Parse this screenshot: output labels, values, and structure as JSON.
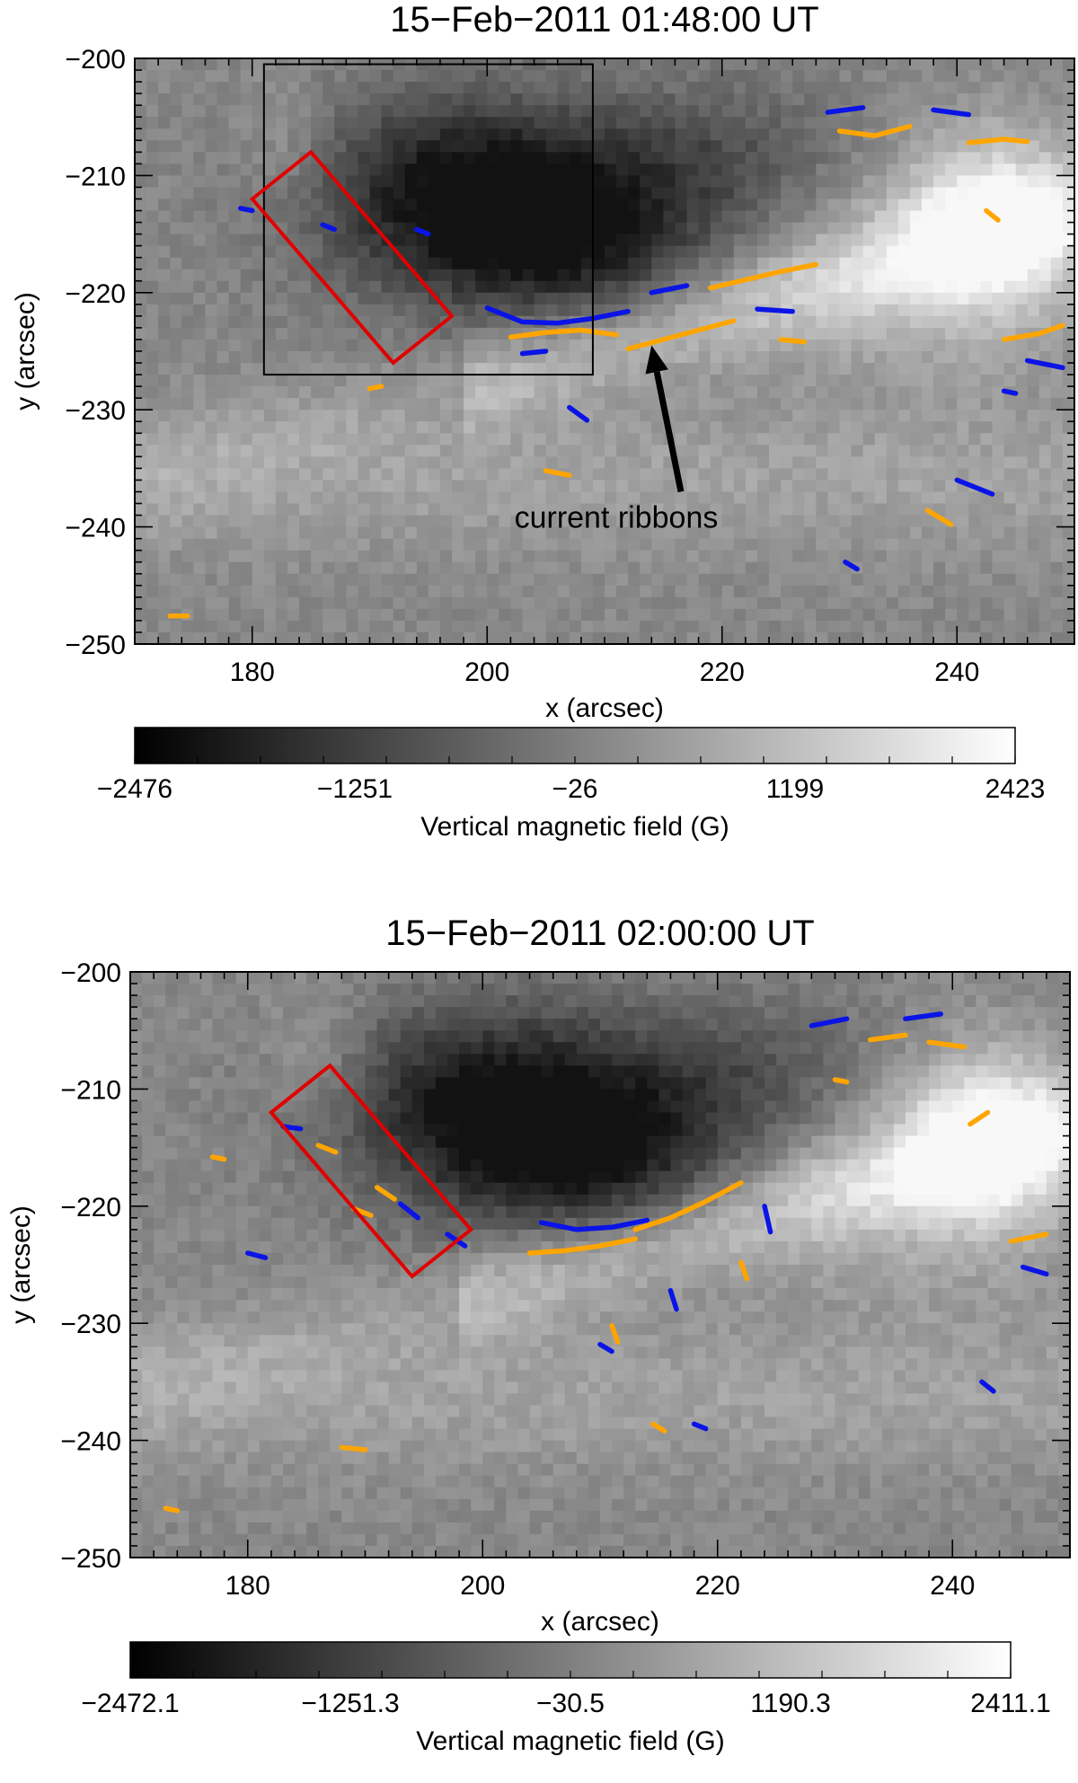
{
  "chart_data": [
    {
      "type": "heatmap",
      "title": "15−Feb−2011 01:48:00 UT",
      "xlabel": "x (arcsec)",
      "ylabel": "y (arcsec)",
      "xlim": [
        170,
        250
      ],
      "ylim": [
        -250,
        -200
      ],
      "x_ticks": [
        "180",
        "200",
        "220",
        "240"
      ],
      "y_ticks": [
        "−200",
        "−210",
        "−220",
        "−230",
        "−240",
        "−250"
      ],
      "colorbar": {
        "label": "Vertical magnetic field (G)",
        "range": [
          -2476,
          2423
        ],
        "ticks": [
          "−2476",
          "−1251",
          "−26",
          "1199",
          "2423"
        ],
        "colormap": "grayscale"
      },
      "contour_colors": {
        "negative": "#0a14e6",
        "positive": "#ffa500"
      },
      "black_box": {
        "x": [
          181,
          209
        ],
        "y": [
          -227,
          -200.5
        ]
      },
      "red_box": [
        [
          180,
          -212
        ],
        [
          185,
          -208
        ],
        [
          197,
          -222
        ],
        [
          192,
          -226
        ]
      ],
      "annotation": {
        "text": "current ribbons",
        "arrow_tip": [
          214,
          -224.5
        ],
        "arrow_tail": [
          216.5,
          -237
        ]
      },
      "contours": {
        "positive": [
          [
            [
              202,
              -223.8
            ],
            [
              205,
              -223.4
            ],
            [
              208,
              -223.2
            ],
            [
              211,
              -223.6
            ]
          ],
          [
            [
              212,
              -224.8
            ],
            [
              215,
              -224.0
            ],
            [
              218,
              -223.2
            ],
            [
              221,
              -222.4
            ]
          ],
          [
            [
              219,
              -219.6
            ],
            [
              222,
              -218.9
            ],
            [
              225,
              -218.2
            ],
            [
              228,
              -217.6
            ]
          ],
          [
            [
              230,
              -206.2
            ],
            [
              233,
              -206.6
            ],
            [
              236,
              -205.8
            ]
          ],
          [
            [
              241,
              -207.2
            ],
            [
              244,
              -206.9
            ],
            [
              246,
              -207.1
            ]
          ],
          [
            [
              242.5,
              -213.0
            ],
            [
              243.5,
              -213.8
            ]
          ],
          [
            [
              244,
              -224.0
            ],
            [
              247,
              -223.5
            ],
            [
              249,
              -222.8
            ]
          ],
          [
            [
              205,
              -235.2
            ],
            [
              207,
              -235.6
            ]
          ],
          [
            [
              237.5,
              -238.6
            ],
            [
              239.5,
              -239.8
            ]
          ],
          [
            [
              225,
              -224.0
            ],
            [
              227,
              -224.2
            ]
          ],
          [
            [
              173,
              -247.6
            ],
            [
              174.5,
              -247.6
            ]
          ],
          [
            [
              190,
              -228.2
            ],
            [
              191,
              -228.0
            ]
          ]
        ],
        "negative": [
          [
            [
              200,
              -221.3
            ],
            [
              203,
              -222.5
            ],
            [
              206,
              -222.6
            ],
            [
              209,
              -222.2
            ],
            [
              212,
              -221.6
            ]
          ],
          [
            [
              203,
              -225.2
            ],
            [
              205,
              -225.0
            ]
          ],
          [
            [
              214,
              -220.0
            ],
            [
              217,
              -219.4
            ]
          ],
          [
            [
              223,
              -221.4
            ],
            [
              226,
              -221.6
            ]
          ],
          [
            [
              229,
              -204.6
            ],
            [
              232,
              -204.2
            ]
          ],
          [
            [
              238,
              -204.4
            ],
            [
              241,
              -204.8
            ]
          ],
          [
            [
              246,
              -225.8
            ],
            [
              249,
              -226.4
            ]
          ],
          [
            [
              207,
              -229.8
            ],
            [
              208.5,
              -230.9
            ]
          ],
          [
            [
              240,
              -236.0
            ],
            [
              243,
              -237.2
            ]
          ],
          [
            [
              230.5,
              -243.0
            ],
            [
              231.5,
              -243.6
            ]
          ],
          [
            [
              194,
              -214.6
            ],
            [
              195,
              -215.0
            ]
          ],
          [
            [
              186,
              -214.2
            ],
            [
              187,
              -214.6
            ]
          ],
          [
            [
              179,
              -212.8
            ],
            [
              180,
              -213.0
            ]
          ],
          [
            [
              244,
              -228.4
            ],
            [
              245,
              -228.6
            ]
          ]
        ]
      }
    },
    {
      "type": "heatmap",
      "title": "15−Feb−2011 02:00:00 UT",
      "xlabel": "x (arcsec)",
      "ylabel": "y (arcsec)",
      "xlim": [
        170,
        250
      ],
      "ylim": [
        -250,
        -200
      ],
      "x_ticks": [
        "180",
        "200",
        "220",
        "240"
      ],
      "y_ticks": [
        "−200",
        "−210",
        "−220",
        "−230",
        "−240",
        "−250"
      ],
      "colorbar": {
        "label": "Vertical magnetic field (G)",
        "range": [
          -2472.1,
          2411.1
        ],
        "ticks": [
          "−2472.1",
          "−1251.3",
          "−30.5",
          "1190.3",
          "2411.1"
        ],
        "colormap": "grayscale"
      },
      "contour_colors": {
        "negative": "#0a14e6",
        "positive": "#ffa500"
      },
      "red_box": [
        [
          182,
          -212
        ],
        [
          187,
          -208
        ],
        [
          199,
          -222
        ],
        [
          194,
          -226
        ]
      ],
      "contours": {
        "positive": [
          [
            [
              204,
              -224.0
            ],
            [
              207,
              -223.8
            ],
            [
              210,
              -223.4
            ],
            [
              213,
              -222.8
            ]
          ],
          [
            [
              213,
              -222.0
            ],
            [
              216,
              -221.0
            ],
            [
              219,
              -219.6
            ],
            [
              222,
              -218.0
            ]
          ],
          [
            [
              186,
              -214.8
            ],
            [
              187.5,
              -215.4
            ]
          ],
          [
            [
              191,
              -218.4
            ],
            [
              192.5,
              -219.4
            ]
          ],
          [
            [
              189,
              -220.2
            ],
            [
              190.5,
              -220.8
            ]
          ],
          [
            [
              233,
              -205.8
            ],
            [
              236,
              -205.4
            ]
          ],
          [
            [
              238,
              -206.0
            ],
            [
              241,
              -206.4
            ]
          ],
          [
            [
              241.5,
              -213.0
            ],
            [
              243,
              -212.0
            ]
          ],
          [
            [
              245,
              -223.0
            ],
            [
              248,
              -222.4
            ]
          ],
          [
            [
              211,
              -230.2
            ],
            [
              211.5,
              -231.6
            ]
          ],
          [
            [
              222,
              -224.8
            ],
            [
              222.5,
              -226.2
            ]
          ],
          [
            [
              188,
              -240.6
            ],
            [
              190,
              -240.8
            ]
          ],
          [
            [
              214.5,
              -238.6
            ],
            [
              215.5,
              -239.2
            ]
          ],
          [
            [
              173,
              -245.8
            ],
            [
              174,
              -246.0
            ]
          ],
          [
            [
              177,
              -215.8
            ],
            [
              178,
              -216.0
            ]
          ],
          [
            [
              230,
              -209.2
            ],
            [
              231,
              -209.4
            ]
          ]
        ],
        "negative": [
          [
            [
              205,
              -221.4
            ],
            [
              208,
              -222.0
            ],
            [
              211,
              -221.8
            ],
            [
              214,
              -221.2
            ]
          ],
          [
            [
              183,
              -213.2
            ],
            [
              184.5,
              -213.4
            ]
          ],
          [
            [
              193,
              -219.8
            ],
            [
              194.5,
              -221.0
            ]
          ],
          [
            [
              197,
              -222.4
            ],
            [
              198.5,
              -223.4
            ]
          ],
          [
            [
              228,
              -204.6
            ],
            [
              231,
              -204.0
            ]
          ],
          [
            [
              236,
              -204.0
            ],
            [
              239,
              -203.6
            ]
          ],
          [
            [
              224,
              -220.0
            ],
            [
              224.5,
              -222.2
            ]
          ],
          [
            [
              216,
              -227.2
            ],
            [
              216.5,
              -228.8
            ]
          ],
          [
            [
              210,
              -231.8
            ],
            [
              211,
              -232.4
            ]
          ],
          [
            [
              218,
              -238.6
            ],
            [
              219,
              -239.0
            ]
          ],
          [
            [
              246,
              -225.2
            ],
            [
              248,
              -225.8
            ]
          ],
          [
            [
              242.5,
              -235.0
            ],
            [
              243.5,
              -235.8
            ]
          ],
          [
            [
              180,
              -224.0
            ],
            [
              181.5,
              -224.4
            ]
          ]
        ]
      }
    }
  ]
}
